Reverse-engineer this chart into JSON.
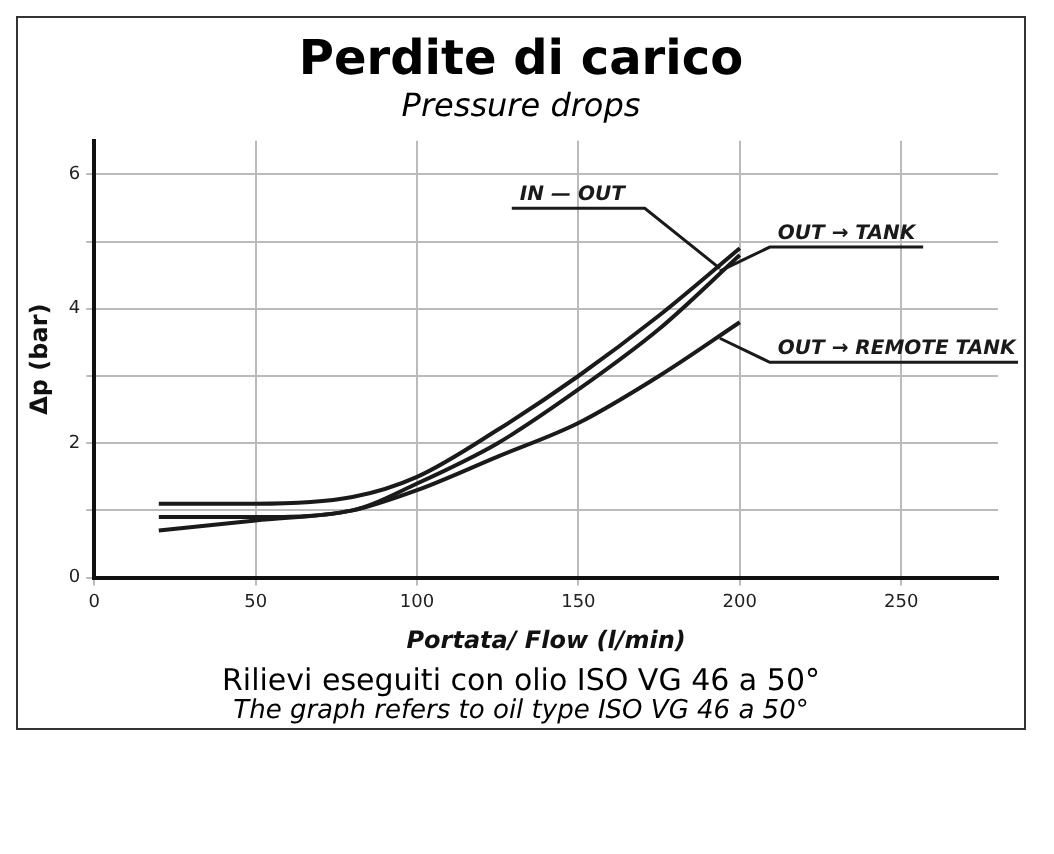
{
  "chart_data": {
    "type": "line",
    "title": "Perdite di carico",
    "subtitle": "Pressure drops",
    "xlabel": "Portata/ Flow (l/min)",
    "ylabel": "Δp (bar)",
    "x": [
      20,
      50,
      80,
      100,
      125,
      150,
      175,
      200
    ],
    "series": [
      {
        "name": "IN — OUT",
        "color": "#1a1a1a",
        "values": [
          1.1,
          1.1,
          1.2,
          1.5,
          2.2,
          3.0,
          3.9,
          4.9
        ]
      },
      {
        "name": "OUT → TANK",
        "color": "#1a1a1a",
        "values": [
          0.9,
          0.9,
          1.0,
          1.4,
          2.0,
          2.8,
          3.7,
          4.8
        ]
      },
      {
        "name": "OUT → REMOTE TANK",
        "color": "#1a1a1a",
        "values": [
          0.7,
          0.85,
          1.0,
          1.3,
          1.8,
          2.3,
          3.0,
          3.8
        ]
      }
    ],
    "xlim": [
      0,
      280
    ],
    "xticks": [
      0,
      50,
      100,
      150,
      200,
      250
    ],
    "ylim": [
      0,
      6.5
    ],
    "yticks": [
      0,
      {
        "value": 1,
        "label": null
      },
      2,
      {
        "value": 3,
        "label": null
      },
      4,
      {
        "value": 5,
        "label": null
      },
      6
    ],
    "grid": true,
    "legend": false,
    "marker": "none",
    "line_style": "solid",
    "annotations": [
      "Rilievi eseguiti con olio ISO VG 46 a 50°",
      "The graph refers to oil type ISO VG 46 a 50°"
    ]
  }
}
